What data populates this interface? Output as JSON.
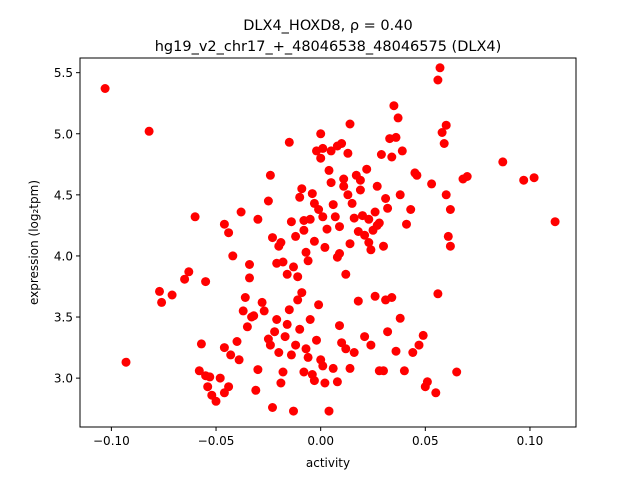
{
  "chart_data": {
    "type": "scatter",
    "title_line1": "DLX4_HOXD8, ρ = 0.40",
    "title_line2": "hg19_v2_chr17_+_48046538_48046575 (DLX4)",
    "xlabel": "activity",
    "ylabel": "expression (log₂tpm)",
    "xlim": [
      -0.115,
      0.122
    ],
    "ylim": [
      2.6,
      5.62
    ],
    "xticks": [
      -0.1,
      -0.05,
      0.0,
      0.05,
      0.1
    ],
    "xtick_labels": [
      "−0.10",
      "−0.05",
      "0.00",
      "0.05",
      "0.10"
    ],
    "yticks": [
      3.0,
      3.5,
      4.0,
      4.5,
      5.0,
      5.5
    ],
    "ytick_labels": [
      "3.0",
      "3.5",
      "4.0",
      "4.5",
      "5.0",
      "5.5"
    ],
    "grid": false,
    "marker_color": "#ff0000",
    "points": [
      [
        -0.103,
        5.37
      ],
      [
        -0.082,
        5.02
      ],
      [
        -0.093,
        3.13
      ],
      [
        -0.077,
        3.71
      ],
      [
        -0.076,
        3.62
      ],
      [
        -0.071,
        3.68
      ],
      [
        -0.065,
        3.81
      ],
      [
        -0.063,
        3.87
      ],
      [
        -0.06,
        4.32
      ],
      [
        -0.058,
        3.06
      ],
      [
        -0.055,
        3.79
      ],
      [
        -0.054,
        2.93
      ],
      [
        -0.052,
        2.86
      ],
      [
        -0.05,
        2.81
      ],
      [
        -0.048,
        3.0
      ],
      [
        -0.046,
        3.25
      ],
      [
        -0.044,
        2.93
      ],
      [
        -0.043,
        3.19
      ],
      [
        -0.042,
        4.0
      ],
      [
        -0.04,
        3.3
      ],
      [
        -0.039,
        3.15
      ],
      [
        -0.037,
        3.55
      ],
      [
        -0.036,
        3.66
      ],
      [
        -0.035,
        3.42
      ],
      [
        -0.034,
        3.82
      ],
      [
        -0.033,
        3.5
      ],
      [
        -0.032,
        3.51
      ],
      [
        -0.031,
        2.9
      ],
      [
        -0.03,
        3.07
      ],
      [
        -0.028,
        3.62
      ],
      [
        -0.027,
        3.55
      ],
      [
        -0.025,
        3.32
      ],
      [
        -0.024,
        3.27
      ],
      [
        -0.023,
        2.76
      ],
      [
        -0.022,
        3.38
      ],
      [
        -0.021,
        3.48
      ],
      [
        -0.02,
        3.21
      ],
      [
        -0.019,
        2.96
      ],
      [
        -0.018,
        3.05
      ],
      [
        -0.017,
        3.34
      ],
      [
        -0.016,
        3.44
      ],
      [
        -0.015,
        3.56
      ],
      [
        -0.014,
        3.19
      ],
      [
        -0.013,
        2.73
      ],
      [
        -0.012,
        3.27
      ],
      [
        -0.011,
        3.64
      ],
      [
        -0.01,
        3.4
      ],
      [
        -0.009,
        3.7
      ],
      [
        -0.008,
        3.05
      ],
      [
        -0.007,
        3.24
      ],
      [
        -0.006,
        3.17
      ],
      [
        -0.005,
        3.48
      ],
      [
        -0.004,
        3.03
      ],
      [
        -0.003,
        2.98
      ],
      [
        -0.002,
        3.31
      ],
      [
        -0.001,
        3.6
      ],
      [
        0.0,
        3.15
      ],
      [
        0.001,
        3.1
      ],
      [
        0.002,
        2.96
      ],
      [
        0.004,
        2.73
      ],
      [
        0.006,
        3.08
      ],
      [
        0.008,
        2.97
      ],
      [
        0.009,
        3.43
      ],
      [
        0.01,
        3.29
      ],
      [
        0.012,
        3.24
      ],
      [
        0.014,
        3.08
      ],
      [
        0.016,
        3.21
      ],
      [
        0.018,
        3.63
      ],
      [
        0.021,
        3.34
      ],
      [
        0.024,
        3.27
      ],
      [
        0.026,
        3.67
      ],
      [
        0.028,
        3.06
      ],
      [
        0.03,
        3.06
      ],
      [
        0.032,
        3.38
      ],
      [
        0.034,
        3.66
      ],
      [
        0.036,
        3.22
      ],
      [
        0.038,
        3.49
      ],
      [
        0.04,
        3.06
      ],
      [
        0.044,
        3.21
      ],
      [
        0.047,
        3.27
      ],
      [
        0.049,
        3.35
      ],
      [
        0.05,
        2.93
      ],
      [
        0.051,
        2.97
      ],
      [
        0.055,
        2.88
      ],
      [
        0.056,
        3.69
      ],
      [
        0.065,
        3.05
      ],
      [
        -0.057,
        3.28
      ],
      [
        -0.055,
        3.02
      ],
      [
        -0.046,
        2.88
      ],
      [
        -0.053,
        3.01
      ],
      [
        -0.046,
        4.26
      ],
      [
        -0.044,
        4.19
      ],
      [
        -0.038,
        4.36
      ],
      [
        -0.034,
        3.93
      ],
      [
        -0.03,
        4.3
      ],
      [
        -0.025,
        4.45
      ],
      [
        -0.024,
        4.66
      ],
      [
        -0.023,
        4.15
      ],
      [
        -0.021,
        3.94
      ],
      [
        -0.02,
        4.08
      ],
      [
        -0.019,
        4.11
      ],
      [
        -0.018,
        3.95
      ],
      [
        -0.016,
        3.85
      ],
      [
        -0.015,
        4.93
      ],
      [
        -0.014,
        4.28
      ],
      [
        -0.013,
        3.91
      ],
      [
        -0.012,
        4.16
      ],
      [
        -0.011,
        3.83
      ],
      [
        -0.01,
        4.48
      ],
      [
        -0.009,
        4.55
      ],
      [
        -0.008,
        4.21
      ],
      [
        -0.007,
        4.03
      ],
      [
        -0.006,
        3.96
      ],
      [
        -0.005,
        4.3
      ],
      [
        -0.004,
        4.51
      ],
      [
        -0.003,
        4.12
      ],
      [
        -0.002,
        4.86
      ],
      [
        -0.001,
        4.38
      ],
      [
        0.0,
        4.8
      ],
      [
        0.001,
        4.32
      ],
      [
        0.002,
        4.07
      ],
      [
        0.003,
        4.22
      ],
      [
        0.004,
        4.7
      ],
      [
        0.005,
        4.86
      ],
      [
        0.006,
        4.42
      ],
      [
        0.007,
        4.32
      ],
      [
        0.008,
        3.99
      ],
      [
        0.009,
        4.24
      ],
      [
        0.01,
        4.92
      ],
      [
        0.011,
        4.63
      ],
      [
        0.012,
        3.85
      ],
      [
        0.013,
        4.5
      ],
      [
        0.014,
        4.1
      ],
      [
        0.015,
        4.43
      ],
      [
        0.016,
        4.31
      ],
      [
        0.017,
        4.66
      ],
      [
        0.018,
        4.2
      ],
      [
        0.019,
        4.54
      ],
      [
        0.02,
        4.33
      ],
      [
        0.021,
        4.17
      ],
      [
        0.022,
        4.71
      ],
      [
        0.023,
        4.3
      ],
      [
        0.024,
        4.05
      ],
      [
        0.025,
        4.21
      ],
      [
        0.026,
        4.36
      ],
      [
        0.027,
        4.57
      ],
      [
        0.028,
        4.27
      ],
      [
        0.029,
        4.83
      ],
      [
        0.03,
        4.08
      ],
      [
        0.031,
        4.47
      ],
      [
        0.032,
        4.39
      ],
      [
        0.033,
        4.96
      ],
      [
        0.034,
        4.81
      ],
      [
        0.035,
        5.23
      ],
      [
        0.036,
        4.97
      ],
      [
        0.037,
        5.13
      ],
      [
        0.038,
        4.5
      ],
      [
        0.039,
        4.86
      ],
      [
        0.041,
        4.26
      ],
      [
        0.043,
        4.38
      ],
      [
        0.045,
        4.68
      ],
      [
        0.046,
        4.66
      ],
      [
        0.053,
        4.59
      ],
      [
        0.056,
        5.44
      ],
      [
        0.057,
        5.54
      ],
      [
        0.058,
        5.01
      ],
      [
        0.059,
        4.92
      ],
      [
        0.06,
        5.07
      ],
      [
        0.06,
        4.5
      ],
      [
        0.061,
        4.16
      ],
      [
        0.062,
        4.08
      ],
      [
        0.062,
        4.38
      ],
      [
        0.068,
        4.63
      ],
      [
        0.07,
        4.65
      ],
      [
        0.087,
        4.77
      ],
      [
        0.097,
        4.62
      ],
      [
        0.102,
        4.64
      ],
      [
        0.112,
        4.28
      ],
      [
        0.014,
        5.08
      ],
      [
        0.0,
        5.0
      ],
      [
        0.001,
        4.88
      ],
      [
        0.008,
        4.9
      ],
      [
        0.011,
        4.57
      ],
      [
        0.013,
        4.84
      ],
      [
        0.019,
        4.62
      ],
      [
        0.023,
        4.11
      ],
      [
        0.027,
        4.25
      ],
      [
        0.031,
        3.64
      ],
      [
        -0.008,
        4.29
      ],
      [
        -0.003,
        4.43
      ],
      [
        0.005,
        4.6
      ],
      [
        0.009,
        4.02
      ]
    ]
  }
}
